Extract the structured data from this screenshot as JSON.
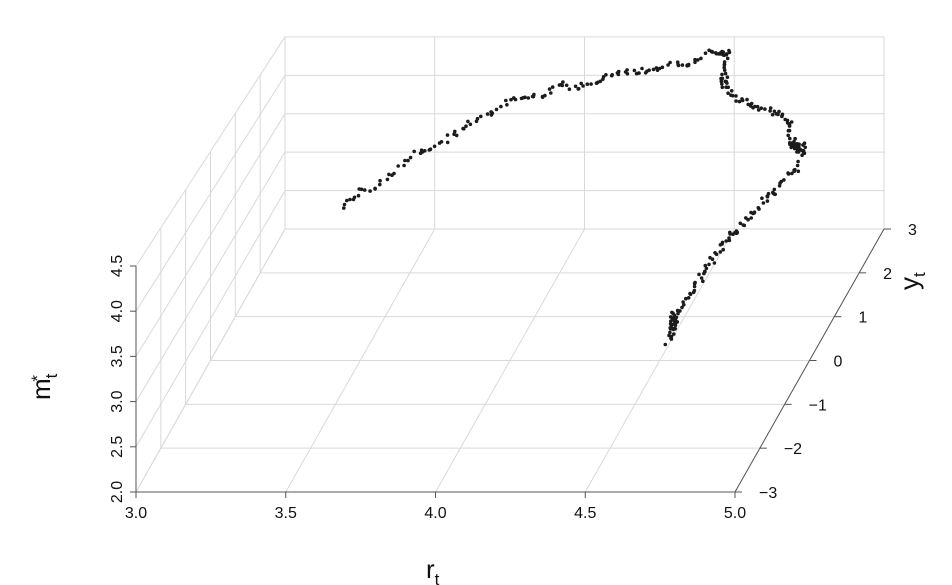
{
  "chart_data": {
    "type": "scatter",
    "projection": "3d",
    "axes": {
      "x": {
        "label_main": "r",
        "label_sub": "t",
        "range": [
          3.0,
          5.0
        ],
        "ticks": [
          3.0,
          3.5,
          4.0,
          4.5,
          5.0
        ],
        "tick_labels": [
          "3.0",
          "3.5",
          "4.0",
          "4.5",
          "5.0"
        ]
      },
      "y": {
        "label_main": "y",
        "label_sub": "t",
        "range": [
          -3,
          3
        ],
        "ticks": [
          -3,
          -2,
          -1,
          0,
          1,
          2,
          3
        ],
        "tick_labels": [
          "−3",
          "−2",
          "−1",
          "0",
          "1",
          "2",
          "3"
        ]
      },
      "z": {
        "label_main": "m",
        "label_sub": "t",
        "label_sup": "*",
        "range": [
          2.0,
          4.5
        ],
        "ticks": [
          2.0,
          2.5,
          3.0,
          3.5,
          4.0,
          4.5
        ],
        "tick_labels": [
          "2.0",
          "2.5",
          "3.0",
          "3.5",
          "4.0",
          "4.5"
        ]
      }
    },
    "grid": true,
    "color": "#1c1c1c",
    "series": [
      {
        "x": [
          3.42,
          3.46,
          3.5,
          3.55,
          3.6,
          3.65,
          3.7,
          3.75,
          3.8,
          3.85,
          3.9,
          3.95,
          4.0,
          4.05,
          4.1,
          4.15,
          4.2,
          4.25,
          4.3,
          4.35,
          4.4,
          4.45,
          4.48,
          4.5,
          4.52,
          4.53,
          4.54,
          4.56,
          4.6,
          4.65,
          4.7,
          4.75,
          4.8,
          4.83,
          4.86,
          4.88,
          4.9,
          4.92,
          4.93,
          4.95,
          4.97,
          4.96,
          4.94,
          4.92,
          4.9,
          4.88,
          4.86,
          4.84,
          4.82,
          4.8,
          4.78,
          4.76,
          4.74,
          4.72,
          4.7,
          4.69,
          4.68,
          4.67,
          4.66,
          4.65,
          4.64
        ],
        "y": [
          0.3,
          0.4,
          0.6,
          0.8,
          1.0,
          1.1,
          1.3,
          1.4,
          1.6,
          1.7,
          1.8,
          1.9,
          2.0,
          2.1,
          2.2,
          2.2,
          2.3,
          2.3,
          2.4,
          2.5,
          2.5,
          2.6,
          2.6,
          2.6,
          2.5,
          2.3,
          2.1,
          1.9,
          1.8,
          1.7,
          1.6,
          1.5,
          1.3,
          1.2,
          1.0,
          0.8,
          0.6,
          0.5,
          0.3,
          0.2,
          0.2,
          0.0,
          -0.2,
          -0.4,
          -0.5,
          -0.7,
          -0.9,
          -1.0,
          -1.1,
          -1.2,
          -1.3,
          -1.4,
          -1.5,
          -1.6,
          -1.7,
          -1.7,
          -1.6,
          -1.5,
          -1.4,
          -1.3,
          -1.4
        ],
        "z": [
          3.7,
          3.8,
          3.8,
          3.9,
          4.0,
          4.0,
          4.1,
          4.2,
          4.2,
          4.3,
          4.3,
          4.3,
          4.4,
          4.3,
          4.3,
          4.4,
          4.4,
          4.4,
          4.4,
          4.4,
          4.4,
          4.5,
          4.5,
          4.5,
          4.5,
          4.4,
          4.4,
          4.4,
          4.3,
          4.3,
          4.3,
          4.3,
          4.3,
          4.3,
          4.2,
          4.2,
          4.3,
          4.3,
          4.4,
          4.4,
          4.5,
          4.3,
          4.3,
          4.2,
          4.2,
          4.1,
          4.1,
          4.0,
          4.0,
          3.9,
          3.8,
          3.7,
          3.6,
          3.5,
          3.4,
          3.3,
          3.2,
          3.3,
          3.1,
          3.0,
          2.9
        ]
      }
    ]
  }
}
